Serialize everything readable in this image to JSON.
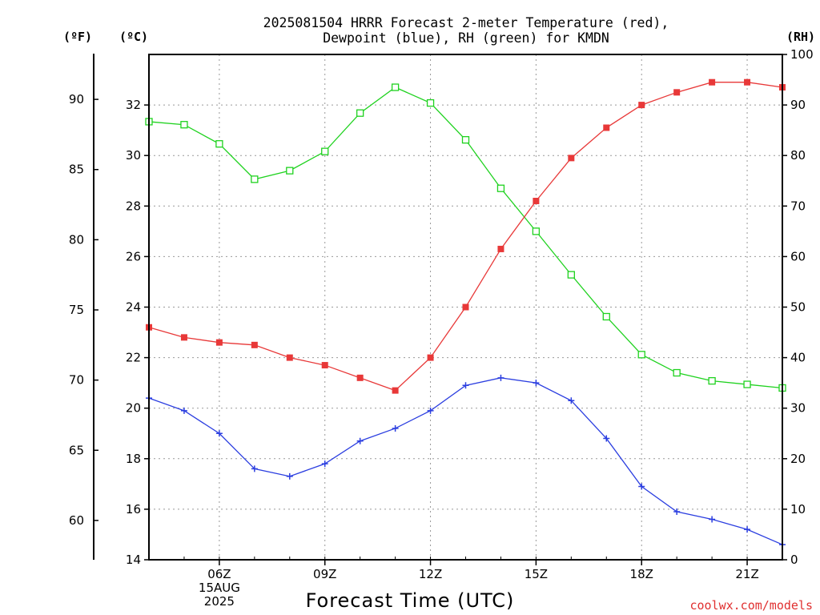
{
  "title": {
    "line1": "2025081504 HRRR Forecast 2-meter Temperature (red),",
    "line2": "Dewpoint (blue), RH (green) for KMDN"
  },
  "units": {
    "f": "(ºF)",
    "c": "(ºC)",
    "rh": "(RH)"
  },
  "credit": "coolwx.com/models",
  "colors": {
    "temperature": "#e83838",
    "dewpoint": "#2b3ee0",
    "rh": "#1fd21f"
  },
  "chart_data": {
    "type": "line",
    "xlabel": "Forecast Time (UTC)",
    "x_hours": [
      4,
      5,
      6,
      7,
      8,
      9,
      10,
      11,
      12,
      13,
      14,
      15,
      16,
      17,
      18,
      19,
      20,
      21,
      22
    ],
    "xlim": [
      4,
      22
    ],
    "x_ticks": [
      {
        "hour": 6,
        "lines": [
          "06Z",
          "15AUG",
          "2025"
        ]
      },
      {
        "hour": 9,
        "lines": [
          "09Z"
        ]
      },
      {
        "hour": 12,
        "lines": [
          "12Z"
        ]
      },
      {
        "hour": 15,
        "lines": [
          "15Z"
        ]
      },
      {
        "hour": 18,
        "lines": [
          "18Z"
        ]
      },
      {
        "hour": 21,
        "lines": [
          "21Z"
        ]
      }
    ],
    "axes": {
      "celsius": {
        "ylim": [
          14,
          34
        ],
        "ticks": [
          14,
          16,
          18,
          20,
          22,
          24,
          26,
          28,
          30,
          32
        ]
      },
      "fahrenheit": {
        "ylim": [
          57.2,
          93.2
        ],
        "ticks": [
          60,
          65,
          70,
          75,
          80,
          85,
          90
        ]
      },
      "rh": {
        "ylim": [
          0,
          100
        ],
        "ticks": [
          0,
          10,
          20,
          30,
          40,
          50,
          60,
          70,
          80,
          90,
          100
        ]
      }
    },
    "grid": true,
    "series": [
      {
        "key": "temperature",
        "axis": "celsius",
        "marker": "filled-square",
        "values": [
          23.2,
          22.8,
          22.6,
          22.5,
          22.0,
          21.7,
          21.2,
          20.7,
          22.0,
          24.0,
          26.3,
          28.2,
          29.9,
          31.1,
          32.0,
          32.5,
          32.9,
          32.9,
          32.7
        ]
      },
      {
        "key": "dewpoint",
        "axis": "celsius",
        "marker": "plus",
        "values": [
          20.4,
          19.9,
          19.0,
          17.6,
          17.3,
          17.8,
          18.7,
          19.2,
          19.9,
          20.9,
          21.2,
          21.0,
          20.3,
          18.8,
          16.9,
          15.9,
          15.6,
          15.2,
          14.6
        ]
      },
      {
        "key": "rh",
        "axis": "rh",
        "marker": "open-square",
        "values": [
          86.7,
          86.1,
          82.3,
          75.3,
          77.0,
          80.8,
          88.4,
          93.5,
          90.4,
          83.1,
          73.5,
          65.0,
          56.4,
          48.1,
          40.6,
          37.0,
          35.4,
          34.7,
          34.0
        ]
      }
    ]
  }
}
